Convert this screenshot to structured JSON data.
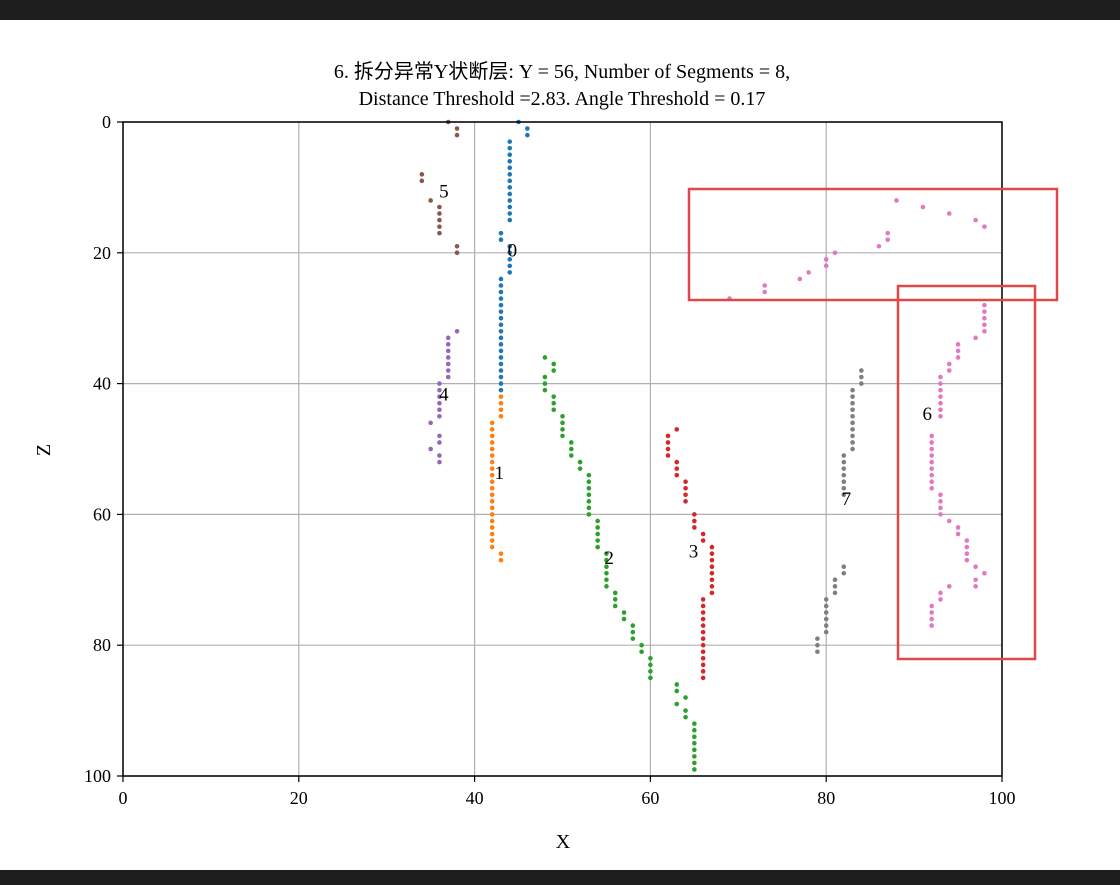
{
  "chart_data": {
    "type": "scatter",
    "title": [
      "6. 拆分异常Y状断层: Y = 56, Number of Segments = 8,",
      "Distance Threshold =2.83. Angle Threshold = 0.17"
    ],
    "xlabel": "X",
    "ylabel": "Z",
    "xlim": [
      0,
      100
    ],
    "ylim": [
      100,
      0
    ],
    "y_inverted": true,
    "grid": true,
    "xticks": [
      "0",
      "20",
      "40",
      "60",
      "80",
      "100"
    ],
    "yticks": [
      "0",
      "20",
      "40",
      "60",
      "80",
      "100"
    ],
    "series": [
      {
        "label": "0",
        "color": "#1f77b4",
        "label_pos": [
          44.3,
          19.5
        ],
        "points": [
          [
            45,
            0
          ],
          [
            46,
            1
          ],
          [
            46,
            2
          ],
          [
            44,
            3
          ],
          [
            44,
            4
          ],
          [
            44,
            5
          ],
          [
            44,
            6
          ],
          [
            44,
            7
          ],
          [
            44,
            8
          ],
          [
            44,
            9
          ],
          [
            44,
            10
          ],
          [
            44,
            11
          ],
          [
            44,
            12
          ],
          [
            44,
            13
          ],
          [
            44,
            14
          ],
          [
            44,
            15
          ],
          [
            43,
            17
          ],
          [
            43,
            18
          ],
          [
            44,
            19
          ],
          [
            44,
            20
          ],
          [
            44,
            21
          ],
          [
            44,
            22
          ],
          [
            44,
            23
          ],
          [
            43,
            24
          ],
          [
            43,
            25
          ],
          [
            43,
            26
          ],
          [
            43,
            27
          ],
          [
            43,
            28
          ],
          [
            43,
            29
          ],
          [
            43,
            30
          ],
          [
            43,
            31
          ],
          [
            43,
            32
          ],
          [
            43,
            33
          ],
          [
            43,
            34
          ],
          [
            43,
            35
          ],
          [
            43,
            36
          ],
          [
            43,
            37
          ],
          [
            43,
            38
          ],
          [
            43,
            39
          ],
          [
            43,
            40
          ],
          [
            43,
            41
          ]
        ]
      },
      {
        "label": "1",
        "color": "#ff7f0e",
        "label_pos": [
          42.8,
          53.5
        ],
        "points": [
          [
            43,
            42
          ],
          [
            43,
            43
          ],
          [
            43,
            44
          ],
          [
            43,
            45
          ],
          [
            42,
            46
          ],
          [
            42,
            47
          ],
          [
            42,
            48
          ],
          [
            42,
            49
          ],
          [
            42,
            50
          ],
          [
            42,
            51
          ],
          [
            42,
            52
          ],
          [
            42,
            53
          ],
          [
            42,
            54
          ],
          [
            42,
            55
          ],
          [
            42,
            56
          ],
          [
            42,
            57
          ],
          [
            42,
            58
          ],
          [
            42,
            59
          ],
          [
            42,
            60
          ],
          [
            42,
            61
          ],
          [
            42,
            62
          ],
          [
            42,
            63
          ],
          [
            42,
            64
          ],
          [
            42,
            65
          ],
          [
            43,
            66
          ],
          [
            43,
            67
          ]
        ]
      },
      {
        "label": "2",
        "color": "#2ca02c",
        "label_pos": [
          55.3,
          66.5
        ],
        "points": [
          [
            48,
            36
          ],
          [
            49,
            37
          ],
          [
            49,
            38
          ],
          [
            48,
            39
          ],
          [
            48,
            40
          ],
          [
            48,
            41
          ],
          [
            49,
            42
          ],
          [
            49,
            43
          ],
          [
            49,
            44
          ],
          [
            50,
            45
          ],
          [
            50,
            46
          ],
          [
            50,
            47
          ],
          [
            50,
            48
          ],
          [
            51,
            49
          ],
          [
            51,
            50
          ],
          [
            51,
            51
          ],
          [
            52,
            52
          ],
          [
            52,
            53
          ],
          [
            53,
            54
          ],
          [
            53,
            55
          ],
          [
            53,
            56
          ],
          [
            53,
            57
          ],
          [
            53,
            58
          ],
          [
            53,
            59
          ],
          [
            53,
            60
          ],
          [
            54,
            61
          ],
          [
            54,
            62
          ],
          [
            54,
            63
          ],
          [
            54,
            64
          ],
          [
            54,
            65
          ],
          [
            55,
            66
          ],
          [
            55,
            67
          ],
          [
            55,
            68
          ],
          [
            55,
            69
          ],
          [
            55,
            70
          ],
          [
            55,
            71
          ],
          [
            56,
            72
          ],
          [
            56,
            73
          ],
          [
            56,
            74
          ],
          [
            57,
            75
          ],
          [
            57,
            76
          ],
          [
            58,
            77
          ],
          [
            58,
            78
          ],
          [
            58,
            79
          ],
          [
            59,
            80
          ],
          [
            59,
            81
          ],
          [
            60,
            82
          ],
          [
            60,
            83
          ],
          [
            60,
            84
          ],
          [
            60,
            85
          ],
          [
            63,
            86
          ],
          [
            63,
            87
          ],
          [
            64,
            88
          ],
          [
            63,
            89
          ],
          [
            64,
            90
          ],
          [
            64,
            91
          ],
          [
            65,
            92
          ],
          [
            65,
            93
          ],
          [
            65,
            94
          ],
          [
            65,
            95
          ],
          [
            65,
            96
          ],
          [
            65,
            97
          ],
          [
            65,
            98
          ],
          [
            65,
            99
          ]
        ]
      },
      {
        "label": "3",
        "color": "#d62728",
        "label_pos": [
          64.9,
          65.5
        ],
        "points": [
          [
            63,
            47
          ],
          [
            62,
            48
          ],
          [
            62,
            49
          ],
          [
            62,
            50
          ],
          [
            62,
            51
          ],
          [
            63,
            52
          ],
          [
            63,
            53
          ],
          [
            63,
            54
          ],
          [
            64,
            55
          ],
          [
            64,
            56
          ],
          [
            64,
            57
          ],
          [
            64,
            58
          ],
          [
            65,
            60
          ],
          [
            65,
            61
          ],
          [
            65,
            62
          ],
          [
            66,
            63
          ],
          [
            66,
            64
          ],
          [
            67,
            65
          ],
          [
            67,
            66
          ],
          [
            67,
            67
          ],
          [
            67,
            68
          ],
          [
            67,
            69
          ],
          [
            67,
            70
          ],
          [
            67,
            71
          ],
          [
            67,
            72
          ],
          [
            66,
            73
          ],
          [
            66,
            74
          ],
          [
            66,
            75
          ],
          [
            66,
            76
          ],
          [
            66,
            77
          ],
          [
            66,
            78
          ],
          [
            66,
            79
          ],
          [
            66,
            80
          ],
          [
            66,
            81
          ],
          [
            66,
            82
          ],
          [
            66,
            83
          ],
          [
            66,
            84
          ],
          [
            66,
            85
          ]
        ]
      },
      {
        "label": "4",
        "color": "#9467bd",
        "label_pos": [
          36.5,
          41.5
        ],
        "points": [
          [
            38,
            32
          ],
          [
            37,
            33
          ],
          [
            37,
            34
          ],
          [
            37,
            35
          ],
          [
            37,
            36
          ],
          [
            37,
            37
          ],
          [
            37,
            38
          ],
          [
            37,
            39
          ],
          [
            36,
            40
          ],
          [
            36,
            41
          ],
          [
            36,
            42
          ],
          [
            36,
            43
          ],
          [
            36,
            44
          ],
          [
            36,
            45
          ],
          [
            35,
            46
          ],
          [
            36,
            48
          ],
          [
            36,
            49
          ],
          [
            35,
            50
          ],
          [
            36,
            51
          ],
          [
            36,
            52
          ]
        ]
      },
      {
        "label": "5",
        "color": "#8c564b",
        "label_pos": [
          36.5,
          10.5
        ],
        "points": [
          [
            37,
            0
          ],
          [
            38,
            1
          ],
          [
            38,
            2
          ],
          [
            34,
            8
          ],
          [
            34,
            9
          ],
          [
            35,
            12
          ],
          [
            36,
            13
          ],
          [
            36,
            14
          ],
          [
            36,
            15
          ],
          [
            36,
            16
          ],
          [
            36,
            17
          ],
          [
            38,
            19
          ],
          [
            38,
            20
          ]
        ]
      },
      {
        "label": "6",
        "color": "#e377c2",
        "label_pos": [
          91.5,
          44.5
        ],
        "points": [
          [
            88,
            12
          ],
          [
            91,
            13
          ],
          [
            94,
            14
          ],
          [
            97,
            15
          ],
          [
            98,
            16
          ],
          [
            87,
            17
          ],
          [
            87,
            18
          ],
          [
            86,
            19
          ],
          [
            81,
            20
          ],
          [
            80,
            21
          ],
          [
            80,
            22
          ],
          [
            78,
            23
          ],
          [
            77,
            24
          ],
          [
            73,
            25
          ],
          [
            73,
            26
          ],
          [
            69,
            27
          ],
          [
            98,
            28
          ],
          [
            98,
            29
          ],
          [
            98,
            30
          ],
          [
            98,
            31
          ],
          [
            98,
            32
          ],
          [
            97,
            33
          ],
          [
            95,
            34
          ],
          [
            95,
            35
          ],
          [
            95,
            36
          ],
          [
            94,
            37
          ],
          [
            94,
            38
          ],
          [
            93,
            39
          ],
          [
            93,
            40
          ],
          [
            93,
            41
          ],
          [
            93,
            42
          ],
          [
            93,
            43
          ],
          [
            93,
            44
          ],
          [
            93,
            45
          ],
          [
            92,
            48
          ],
          [
            92,
            49
          ],
          [
            92,
            50
          ],
          [
            92,
            51
          ],
          [
            92,
            52
          ],
          [
            92,
            53
          ],
          [
            92,
            54
          ],
          [
            92,
            55
          ],
          [
            92,
            56
          ],
          [
            93,
            57
          ],
          [
            93,
            58
          ],
          [
            93,
            59
          ],
          [
            93,
            60
          ],
          [
            94,
            61
          ],
          [
            95,
            62
          ],
          [
            95,
            63
          ],
          [
            96,
            64
          ],
          [
            96,
            65
          ],
          [
            96,
            66
          ],
          [
            96,
            67
          ],
          [
            97,
            68
          ],
          [
            98,
            69
          ],
          [
            97,
            70
          ],
          [
            97,
            71
          ],
          [
            94,
            71
          ],
          [
            93,
            72
          ],
          [
            93,
            73
          ],
          [
            92,
            74
          ],
          [
            92,
            75
          ],
          [
            92,
            76
          ],
          [
            92,
            77
          ]
        ]
      },
      {
        "label": "7",
        "color": "#7f7f7f",
        "label_pos": [
          82.3,
          57.5
        ],
        "points": [
          [
            84,
            38
          ],
          [
            84,
            39
          ],
          [
            84,
            40
          ],
          [
            83,
            41
          ],
          [
            83,
            42
          ],
          [
            83,
            43
          ],
          [
            83,
            44
          ],
          [
            83,
            45
          ],
          [
            83,
            46
          ],
          [
            83,
            47
          ],
          [
            83,
            48
          ],
          [
            83,
            49
          ],
          [
            83,
            50
          ],
          [
            82,
            51
          ],
          [
            82,
            52
          ],
          [
            82,
            53
          ],
          [
            82,
            54
          ],
          [
            82,
            55
          ],
          [
            82,
            56
          ],
          [
            82,
            57
          ],
          [
            82,
            68
          ],
          [
            82,
            69
          ],
          [
            81,
            70
          ],
          [
            81,
            71
          ],
          [
            81,
            72
          ],
          [
            80,
            73
          ],
          [
            80,
            74
          ],
          [
            80,
            75
          ],
          [
            80,
            76
          ],
          [
            80,
            77
          ],
          [
            80,
            78
          ],
          [
            79,
            79
          ],
          [
            79,
            80
          ],
          [
            79,
            81
          ]
        ]
      }
    ]
  }
}
